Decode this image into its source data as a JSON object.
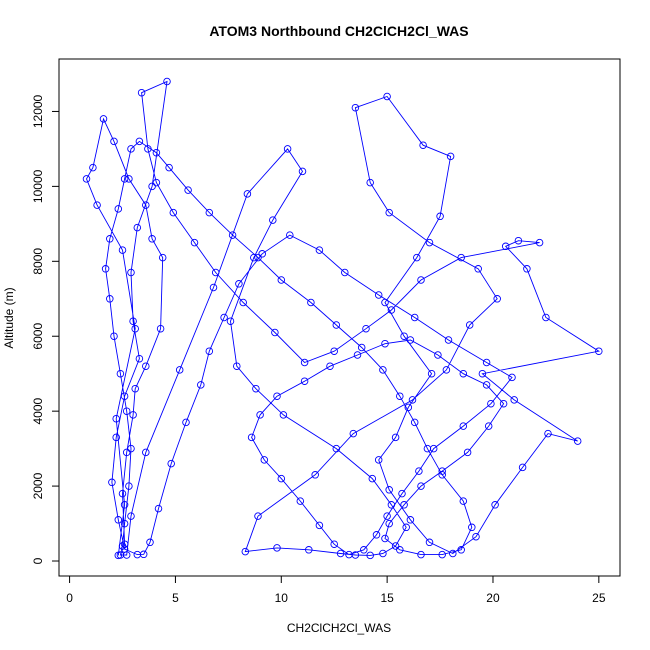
{
  "chart_data": {
    "type": "scatter",
    "title": "ATOM3 Northbound CH2ClCH2Cl_WAS",
    "xlabel": "CH2ClCH2Cl_WAS",
    "ylabel": "Altitude (m)",
    "xlim": [
      -0.5,
      26
    ],
    "ylim": [
      -400,
      13400
    ],
    "xticks": [
      0,
      5,
      10,
      15,
      20,
      25
    ],
    "yticks": [
      0,
      2000,
      4000,
      6000,
      8000,
      10000,
      12000
    ],
    "grid": false,
    "legend": "none",
    "series_color": "#0000ff",
    "marker": "open-circle",
    "connect_points": true,
    "series": [
      {
        "name": "",
        "points": [
          [
            2.3,
            150
          ],
          [
            2.6,
            1500
          ],
          [
            2.2,
            3800
          ],
          [
            3.1,
            6200
          ],
          [
            2.5,
            8300
          ],
          [
            1.3,
            9500
          ],
          [
            0.8,
            10200
          ],
          [
            1.1,
            10500
          ],
          [
            1.6,
            11800
          ],
          [
            2.1,
            11200
          ],
          [
            2.8,
            10200
          ],
          [
            3.6,
            9500
          ],
          [
            3.9,
            8600
          ],
          [
            4.4,
            8100
          ],
          [
            4.3,
            6200
          ],
          [
            3.6,
            5200
          ],
          [
            3.1,
            4600
          ],
          [
            3.0,
            3900
          ],
          [
            2.7,
            2900
          ],
          [
            2.5,
            1800
          ],
          [
            2.6,
            450
          ],
          [
            2.4,
            160
          ],
          [
            2.7,
            160
          ],
          [
            2.9,
            1200
          ],
          [
            3.6,
            2900
          ],
          [
            5.2,
            5100
          ],
          [
            6.8,
            7300
          ],
          [
            8.4,
            9800
          ],
          [
            10.3,
            11000
          ],
          [
            11.0,
            10400
          ],
          [
            9.6,
            9100
          ],
          [
            8.7,
            8100
          ],
          [
            7.6,
            6400
          ],
          [
            7.9,
            5200
          ],
          [
            8.8,
            4600
          ],
          [
            10.1,
            3900
          ],
          [
            12.6,
            3000
          ],
          [
            14.3,
            2200
          ],
          [
            15.2,
            1500
          ],
          [
            15.9,
            900
          ],
          [
            15.4,
            400
          ],
          [
            14.8,
            200
          ],
          [
            14.2,
            150
          ],
          [
            13.5,
            160
          ],
          [
            12.8,
            200
          ],
          [
            11.3,
            300
          ],
          [
            9.8,
            350
          ],
          [
            8.3,
            250
          ],
          [
            8.9,
            1200
          ],
          [
            11.6,
            2300
          ],
          [
            13.4,
            3400
          ],
          [
            16.2,
            4300
          ],
          [
            17.8,
            5100
          ],
          [
            18.9,
            6300
          ],
          [
            20.2,
            7000
          ],
          [
            19.3,
            7800
          ],
          [
            17.0,
            8500
          ],
          [
            15.1,
            9300
          ],
          [
            14.2,
            10100
          ],
          [
            13.5,
            12100
          ],
          [
            15.0,
            12400
          ],
          [
            16.7,
            11100
          ],
          [
            18.0,
            10800
          ],
          [
            17.5,
            9200
          ],
          [
            16.4,
            8100
          ],
          [
            14.9,
            6900
          ],
          [
            15.8,
            6000
          ],
          [
            17.1,
            5000
          ],
          [
            16.0,
            4100
          ],
          [
            15.4,
            3300
          ],
          [
            14.6,
            2700
          ],
          [
            15.1,
            1900
          ],
          [
            16.1,
            1100
          ],
          [
            17.0,
            500
          ],
          [
            18.1,
            200
          ],
          [
            19.2,
            650
          ],
          [
            20.1,
            1500
          ],
          [
            21.4,
            2500
          ],
          [
            22.6,
            3400
          ],
          [
            24.0,
            3200
          ],
          [
            21.0,
            4300
          ],
          [
            19.5,
            5000
          ],
          [
            25.0,
            5600
          ],
          [
            22.5,
            6500
          ],
          [
            21.6,
            7800
          ],
          [
            20.6,
            8400
          ],
          [
            21.2,
            8550
          ],
          [
            22.2,
            8500
          ],
          [
            18.5,
            8100
          ],
          [
            16.6,
            7500
          ],
          [
            15.2,
            6700
          ],
          [
            14.0,
            6200
          ],
          [
            12.5,
            5600
          ],
          [
            11.1,
            5300
          ],
          [
            9.7,
            6100
          ],
          [
            8.2,
            6900
          ],
          [
            6.9,
            7700
          ],
          [
            5.9,
            8500
          ],
          [
            4.9,
            9300
          ],
          [
            4.1,
            10100
          ],
          [
            3.7,
            11000
          ],
          [
            3.4,
            12500
          ],
          [
            4.6,
            12800
          ],
          [
            3.9,
            10000
          ],
          [
            3.2,
            8900
          ],
          [
            2.9,
            7700
          ],
          [
            3.0,
            6400
          ],
          [
            3.3,
            5400
          ],
          [
            2.6,
            4400
          ],
          [
            2.2,
            3300
          ],
          [
            2.0,
            2100
          ],
          [
            2.3,
            1100
          ],
          [
            2.6,
            320
          ],
          [
            3.2,
            170
          ],
          [
            3.5,
            180
          ],
          [
            3.8,
            500
          ],
          [
            4.2,
            1400
          ],
          [
            4.8,
            2600
          ],
          [
            5.5,
            3700
          ],
          [
            6.2,
            4700
          ],
          [
            6.6,
            5600
          ],
          [
            7.3,
            6500
          ],
          [
            8.0,
            7400
          ],
          [
            9.1,
            8200
          ],
          [
            10.4,
            8700
          ],
          [
            11.8,
            8300
          ],
          [
            13.0,
            7700
          ],
          [
            14.6,
            7100
          ],
          [
            16.3,
            6500
          ],
          [
            17.9,
            5900
          ],
          [
            19.7,
            5300
          ],
          [
            20.9,
            4900
          ],
          [
            19.9,
            4200
          ],
          [
            18.6,
            3600
          ],
          [
            17.2,
            3000
          ],
          [
            16.5,
            2400
          ],
          [
            15.7,
            1800
          ],
          [
            15.0,
            1200
          ],
          [
            14.5,
            700
          ],
          [
            13.9,
            300
          ],
          [
            13.2,
            170
          ],
          [
            12.5,
            450
          ],
          [
            11.8,
            950
          ],
          [
            10.9,
            1600
          ],
          [
            10.0,
            2200
          ],
          [
            9.2,
            2700
          ],
          [
            8.6,
            3300
          ],
          [
            9.0,
            3900
          ],
          [
            9.8,
            4400
          ],
          [
            11.1,
            4800
          ],
          [
            12.3,
            5200
          ],
          [
            13.6,
            5500
          ],
          [
            14.9,
            5800
          ],
          [
            16.1,
            5900
          ],
          [
            17.4,
            5500
          ],
          [
            18.6,
            5000
          ],
          [
            19.7,
            4700
          ],
          [
            20.5,
            4200
          ],
          [
            19.8,
            3600
          ],
          [
            18.8,
            2900
          ],
          [
            17.6,
            2400
          ],
          [
            16.6,
            2000
          ],
          [
            15.8,
            1500
          ],
          [
            15.1,
            1000
          ],
          [
            14.9,
            600
          ],
          [
            15.6,
            300
          ],
          [
            16.6,
            170
          ],
          [
            17.6,
            170
          ],
          [
            18.5,
            300
          ],
          [
            19.0,
            900
          ],
          [
            18.6,
            1600
          ],
          [
            17.6,
            2300
          ],
          [
            16.9,
            3000
          ],
          [
            16.3,
            3700
          ],
          [
            15.6,
            4400
          ],
          [
            14.8,
            5100
          ],
          [
            13.8,
            5700
          ],
          [
            12.6,
            6300
          ],
          [
            11.4,
            6900
          ],
          [
            10.0,
            7500
          ],
          [
            8.9,
            8100
          ],
          [
            7.7,
            8700
          ],
          [
            6.6,
            9300
          ],
          [
            5.6,
            9900
          ],
          [
            4.7,
            10500
          ],
          [
            4.1,
            10900
          ],
          [
            3.3,
            11200
          ],
          [
            2.9,
            11000
          ],
          [
            2.6,
            10200
          ],
          [
            2.3,
            9400
          ],
          [
            1.9,
            8600
          ],
          [
            1.7,
            7800
          ],
          [
            1.9,
            7000
          ],
          [
            2.1,
            6000
          ],
          [
            2.4,
            5000
          ],
          [
            2.7,
            4000
          ],
          [
            2.9,
            3000
          ],
          [
            2.8,
            2000
          ],
          [
            2.6,
            1000
          ],
          [
            2.5,
            400
          ]
        ]
      }
    ]
  }
}
